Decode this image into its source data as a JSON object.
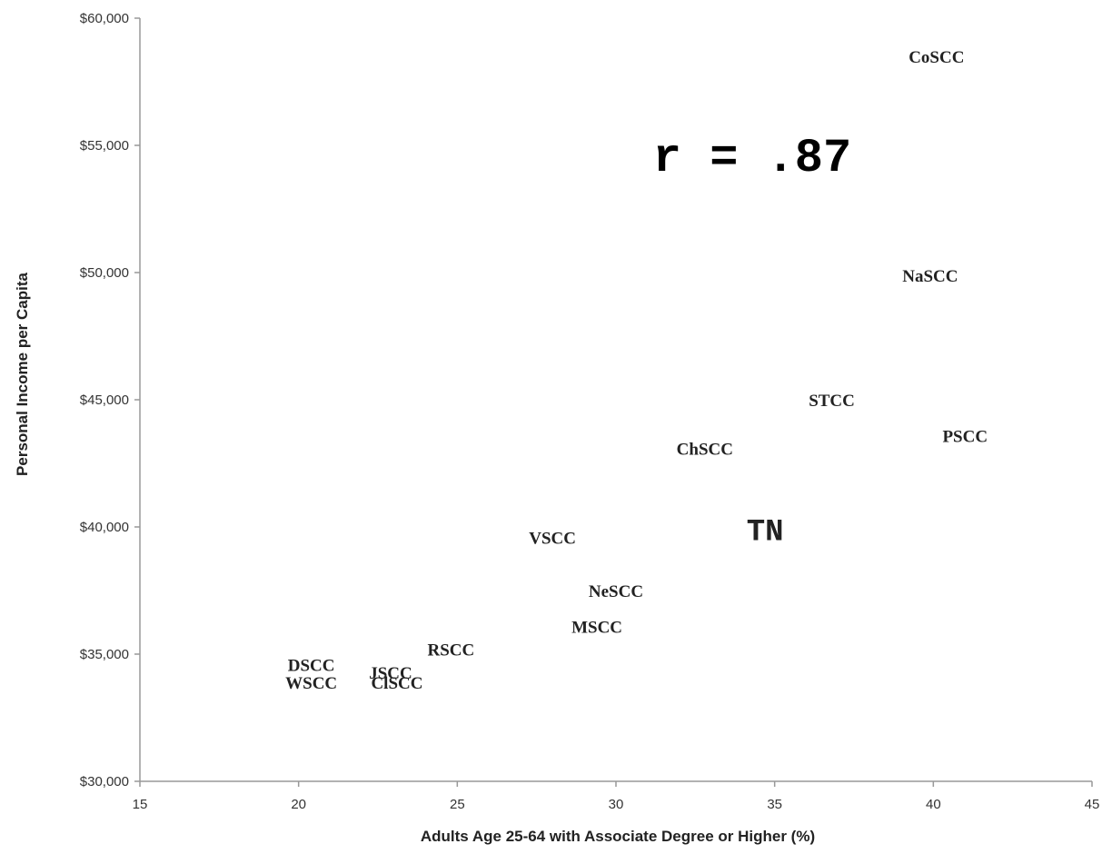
{
  "chart_data": {
    "type": "scatter",
    "title": "",
    "xlabel": "Adults Age 25-64 with Associate Degree or Higher (%)",
    "ylabel": "Personal Income per Capita",
    "xlim": [
      15,
      45
    ],
    "ylim": [
      30000,
      60000
    ],
    "x_ticks": [
      "15",
      "20",
      "25",
      "30",
      "35",
      "40",
      "45"
    ],
    "y_ticks": [
      "$30,000",
      "$35,000",
      "$40,000",
      "$45,000",
      "$50,000",
      "$55,000",
      "$60,000"
    ],
    "x_tick_values": [
      15,
      20,
      25,
      30,
      35,
      40,
      45
    ],
    "y_tick_values": [
      30000,
      35000,
      40000,
      45000,
      50000,
      55000,
      60000
    ],
    "grid": false,
    "marker": "text-label",
    "annotation": "r = .87",
    "points": [
      {
        "label": "CoSCC",
        "x": 40.1,
        "y": 58400
      },
      {
        "label": "NaSCC",
        "x": 39.9,
        "y": 49800
      },
      {
        "label": "STCC",
        "x": 36.8,
        "y": 44900
      },
      {
        "label": "PSCC",
        "x": 41.0,
        "y": 43500
      },
      {
        "label": "ChSCC",
        "x": 32.8,
        "y": 43000
      },
      {
        "label": "TN",
        "x": 34.7,
        "y": 39800,
        "color": "#ff0000",
        "highlight": true
      },
      {
        "label": "VSCC",
        "x": 28.0,
        "y": 39500
      },
      {
        "label": "NeSCC",
        "x": 30.0,
        "y": 37400
      },
      {
        "label": "MSCC",
        "x": 29.4,
        "y": 36000
      },
      {
        "label": "RSCC",
        "x": 24.8,
        "y": 35100
      },
      {
        "label": "DSCC",
        "x": 20.4,
        "y": 34500
      },
      {
        "label": "JSCC",
        "x": 22.9,
        "y": 34200
      },
      {
        "label": "WSCC",
        "x": 20.4,
        "y": 33800
      },
      {
        "label": "ClSCC",
        "x": 23.1,
        "y": 33800
      }
    ]
  }
}
